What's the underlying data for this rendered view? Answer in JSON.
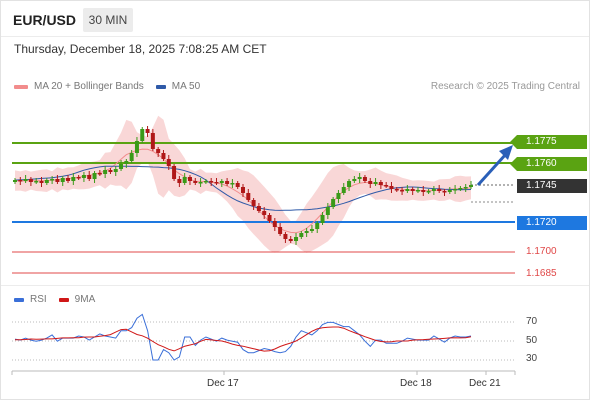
{
  "header": {
    "pair": "EUR/USD",
    "timeframe": "30 MIN",
    "datetime": "Thursday, December 18, 2025 7:08:25 AM CET"
  },
  "legend": {
    "ma20": "MA 20 + Bollinger Bands",
    "ma50": "MA 50",
    "credit": "Research © 2025 Trading Central",
    "ma20_color": "#f28c8c",
    "ma50_color": "#2f5aa8"
  },
  "price_levels": [
    {
      "value": "1.1775",
      "kind": "resistance",
      "color": "#5aa312"
    },
    {
      "value": "1.1760",
      "kind": "resistance",
      "color": "#5aa312"
    },
    {
      "value": "1.1745",
      "kind": "current",
      "color": "#333333"
    },
    {
      "value": "1.1720",
      "kind": "pivot",
      "color": "#1e78e0"
    },
    {
      "value": "1.1700",
      "kind": "support",
      "color": "#e04848"
    },
    {
      "value": "1.1685",
      "kind": "support",
      "color": "#e04848"
    }
  ],
  "rsi": {
    "legend_rsi": "RSI",
    "legend_ma": "9MA",
    "rsi_color": "#3a6fd8",
    "ma_color": "#d01818",
    "levels": [
      "70",
      "50",
      "30"
    ]
  },
  "x_axis": {
    "labels": [
      "Dec 17",
      "Dec 18",
      "Dec 21"
    ]
  },
  "colors": {
    "bull": "#3a9a18",
    "bear": "#b01818",
    "band_fill": "#f8d0d0"
  }
}
